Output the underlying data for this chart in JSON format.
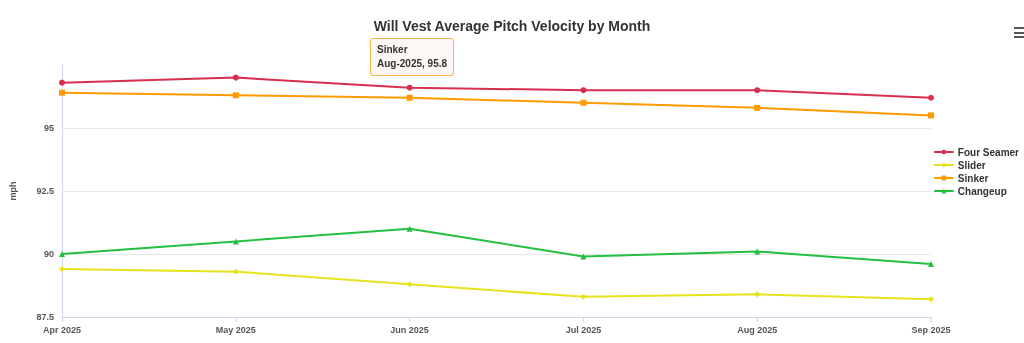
{
  "chart_data": {
    "type": "line",
    "title": "Will Vest Average Pitch Velocity by Month",
    "ylabel": "mph",
    "categories": [
      "Apr 2025",
      "May 2025",
      "Jun 2025",
      "Jul 2025",
      "Aug 2025",
      "Sep 2025"
    ],
    "series": [
      {
        "name": "Four Seamer",
        "color": "#d7304f",
        "marker": "circle",
        "values": [
          96.8,
          97.0,
          96.6,
          96.5,
          96.5,
          96.2
        ]
      },
      {
        "name": "Slider",
        "color": "#e6e21e",
        "marker": "diamond",
        "values": [
          89.4,
          89.3,
          88.8,
          88.3,
          88.4,
          88.2
        ]
      },
      {
        "name": "Sinker",
        "color": "#ff9a00",
        "marker": "square",
        "values": [
          96.4,
          96.3,
          96.2,
          96.0,
          95.8,
          95.5
        ]
      },
      {
        "name": "Changeup",
        "color": "#22c040",
        "marker": "triangle",
        "values": [
          90.0,
          90.5,
          91.0,
          89.9,
          90.1,
          89.6
        ]
      }
    ],
    "ylim": [
      87.5,
      97.5
    ],
    "yticks": [
      87.5,
      90,
      92.5,
      95
    ],
    "annotations": [
      "Sinker\nAug-2025, 95.8"
    ],
    "grid": "y",
    "legend": "right",
    "line_style": "solid"
  }
}
